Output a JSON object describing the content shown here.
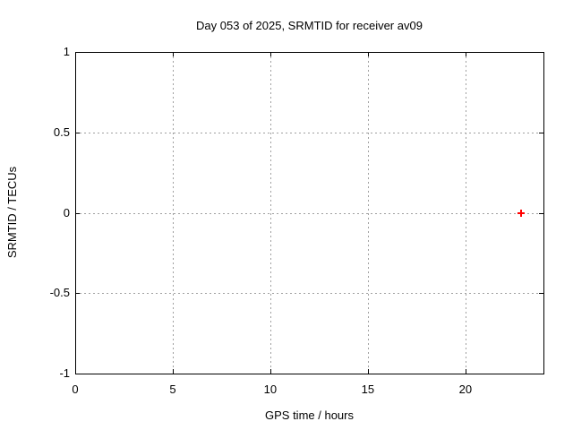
{
  "chart_data": {
    "type": "scatter",
    "title": "Day 053 of 2025, SRMTID for receiver av09",
    "xlabel": "GPS time / hours",
    "ylabel": "SRMTID / TECUs",
    "xlim": [
      0,
      24
    ],
    "ylim": [
      -1,
      1
    ],
    "xticks": [
      0,
      5,
      10,
      15,
      20
    ],
    "xtick_labels": [
      "0",
      "5",
      "10",
      "15",
      "20"
    ],
    "yticks": [
      -1,
      -0.5,
      0,
      0.5,
      1
    ],
    "ytick_labels": [
      "-1",
      "-0.5",
      "0",
      "0.5",
      "1"
    ],
    "grid": true,
    "grid_style": "dashed",
    "legend": "none",
    "series": [
      {
        "name": "SRMTID",
        "marker": "plus",
        "color": "#ff0000",
        "points": [
          {
            "x": 22.85,
            "y": 0.0
          }
        ]
      }
    ],
    "colors": {
      "background": "#ffffff",
      "border": "#000000",
      "grid": "#a0a0a0",
      "text": "#000000",
      "marker": "#ff0000"
    }
  }
}
